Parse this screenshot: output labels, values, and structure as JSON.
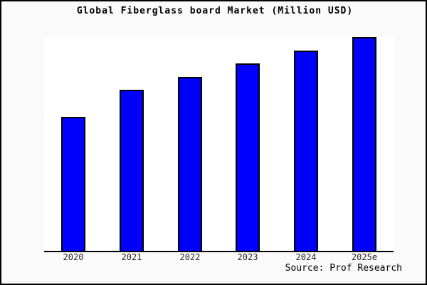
{
  "figure": {
    "background_color": "#FAFAFA",
    "plot_background_color": "#FFFFFF",
    "border_color": "#000000",
    "source": "Source: Prof Research"
  },
  "chart_data": {
    "type": "bar",
    "title": "Global Fiberglass board Market (Million USD)",
    "categories": [
      "2020",
      "2021",
      "2022",
      "2023",
      "2024",
      "2025e"
    ],
    "values": [
      62.7,
      75.2,
      81.5,
      87.8,
      93.7,
      100
    ],
    "values_note": "No y-axis ticks or data labels are shown in the image; values are estimated bar heights as a percentage of the tallest (2025e) bar.",
    "xlabel": "",
    "ylabel": "",
    "ylim": [
      0,
      100
    ],
    "grid": false,
    "legend": null,
    "bar_color": "#0000FF",
    "bar_edge_color": "#000000",
    "source_label": "Source: Prof Research"
  }
}
